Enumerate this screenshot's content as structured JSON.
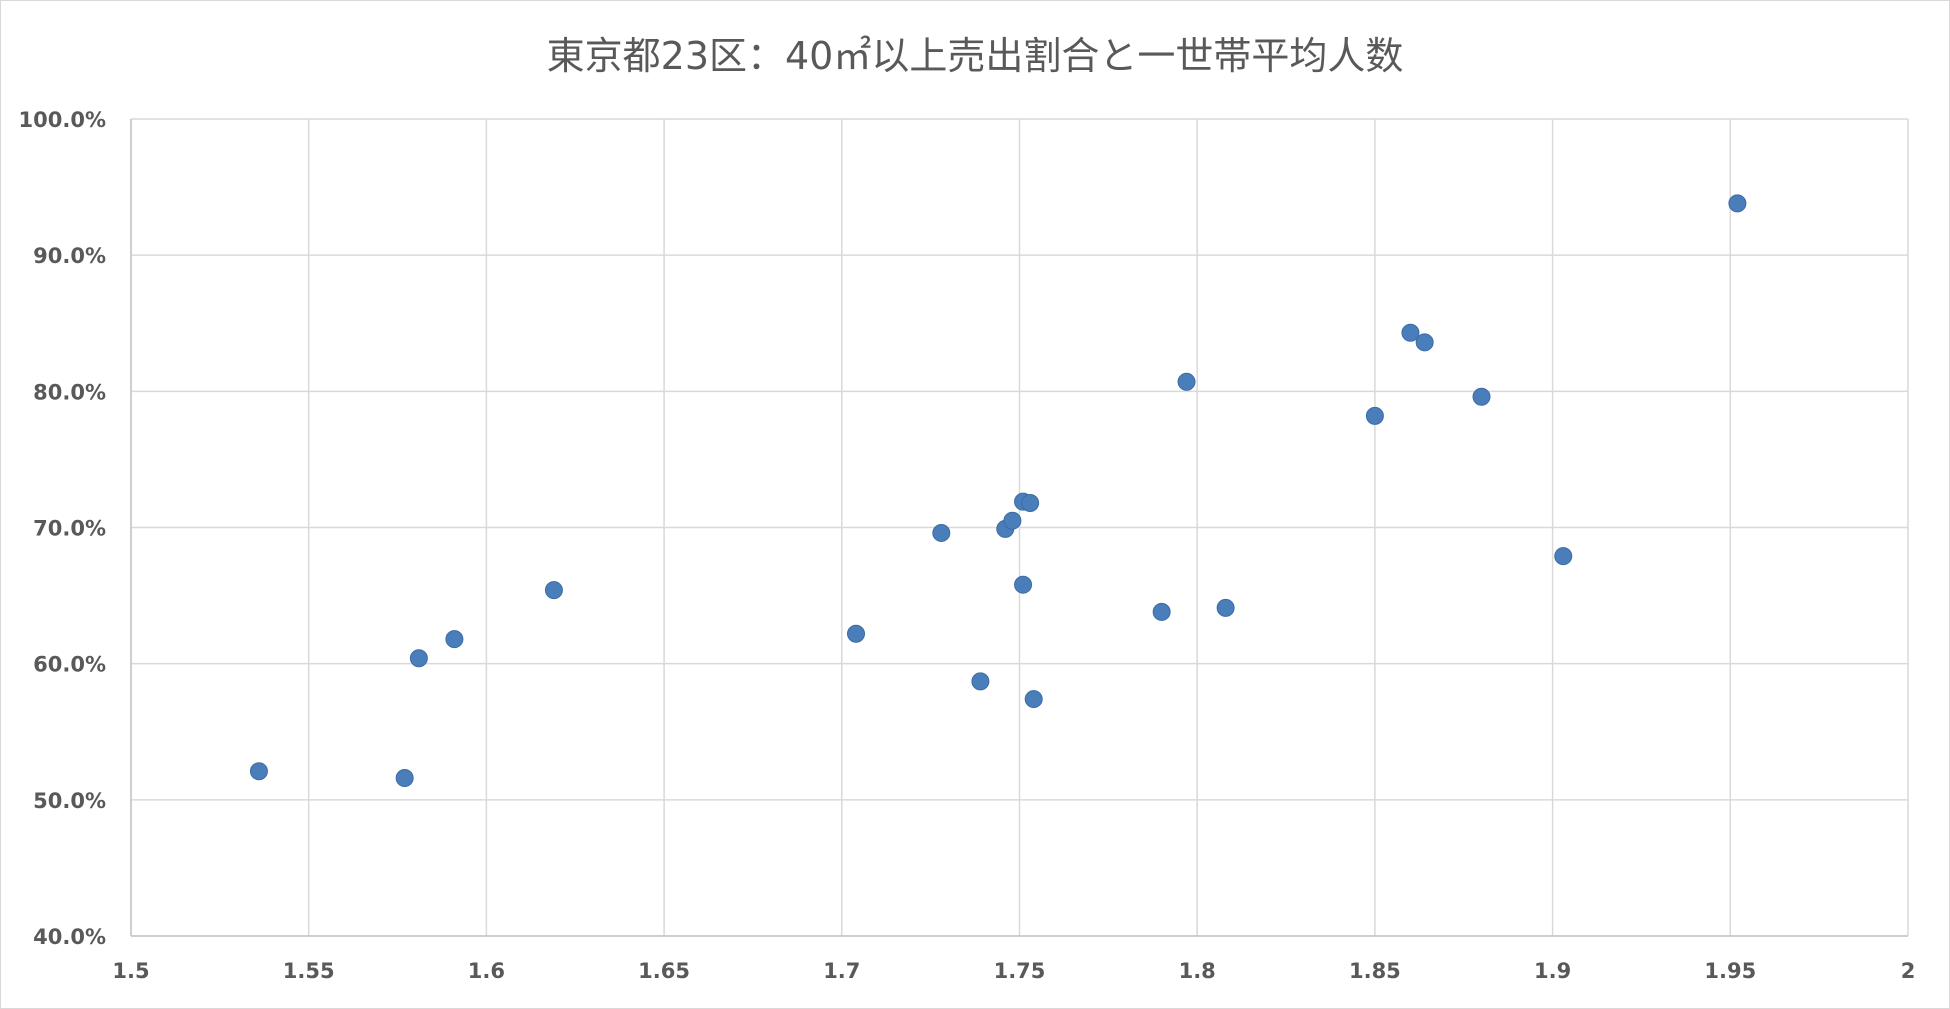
{
  "chart_data": {
    "type": "scatter",
    "title": "東京都23区：40㎡以上売出割合と一世帯平均人数",
    "xlabel": "",
    "ylabel": "",
    "xlim": [
      1.5,
      2
    ],
    "ylim": [
      0.4,
      1.0
    ],
    "x_ticks": [
      "1.5",
      "1.55",
      "1.6",
      "1.65",
      "1.7",
      "1.75",
      "1.8",
      "1.85",
      "1.9",
      "1.95",
      "2"
    ],
    "y_ticks": [
      "40.0%",
      "50.0%",
      "60.0%",
      "70.0%",
      "80.0%",
      "90.0%",
      "100.0%"
    ],
    "grid": true,
    "legend": "none",
    "marker_color": "#4a7ebb",
    "points": [
      {
        "x": 1.536,
        "y": 0.521
      },
      {
        "x": 1.577,
        "y": 0.516
      },
      {
        "x": 1.581,
        "y": 0.604
      },
      {
        "x": 1.591,
        "y": 0.618
      },
      {
        "x": 1.619,
        "y": 0.654
      },
      {
        "x": 1.704,
        "y": 0.622
      },
      {
        "x": 1.728,
        "y": 0.696
      },
      {
        "x": 1.739,
        "y": 0.587
      },
      {
        "x": 1.746,
        "y": 0.699
      },
      {
        "x": 1.748,
        "y": 0.705
      },
      {
        "x": 1.751,
        "y": 0.719
      },
      {
        "x": 1.753,
        "y": 0.718
      },
      {
        "x": 1.751,
        "y": 0.658
      },
      {
        "x": 1.754,
        "y": 0.574
      },
      {
        "x": 1.79,
        "y": 0.638
      },
      {
        "x": 1.797,
        "y": 0.807
      },
      {
        "x": 1.808,
        "y": 0.641
      },
      {
        "x": 1.85,
        "y": 0.782
      },
      {
        "x": 1.86,
        "y": 0.843
      },
      {
        "x": 1.864,
        "y": 0.836
      },
      {
        "x": 1.88,
        "y": 0.796
      },
      {
        "x": 1.903,
        "y": 0.679
      },
      {
        "x": 1.952,
        "y": 0.938
      }
    ]
  }
}
